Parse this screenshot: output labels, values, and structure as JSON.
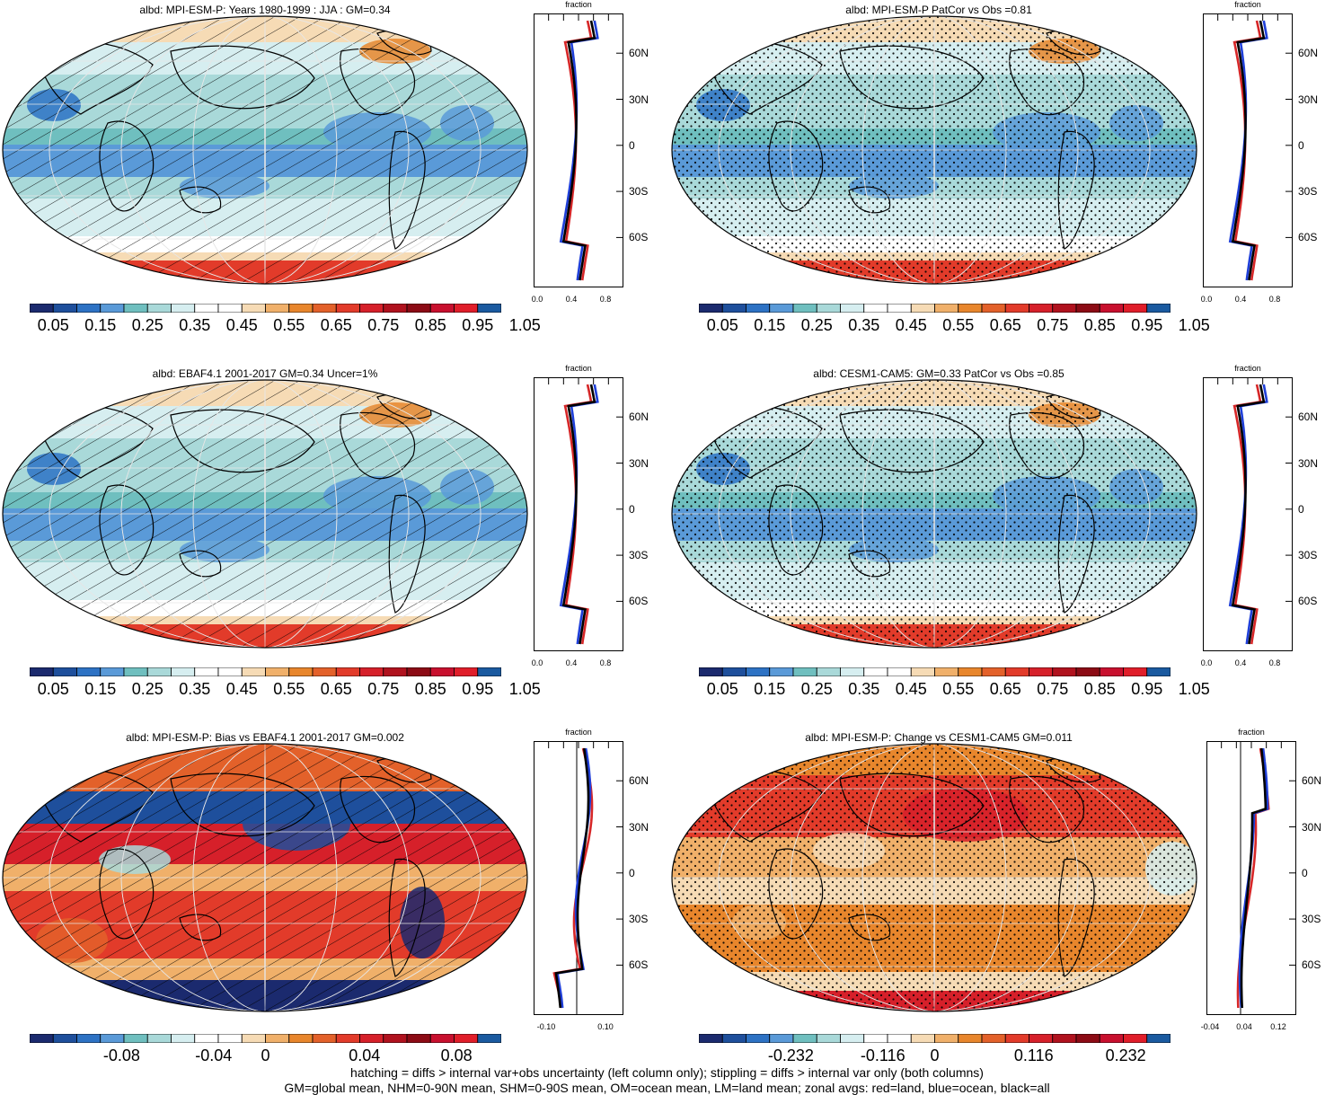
{
  "panels": [
    {
      "id": "p1",
      "title": "albd: MPI-ESM-P: Years 1980-1999 : JJA : GM=0.34",
      "pattern": "hatch",
      "style": "abs",
      "colorbar_labels": [
        "0.05",
        "0.15",
        "0.25",
        "0.35",
        "0.45",
        "0.55",
        "0.65",
        "0.75",
        "0.85",
        "0.95",
        "1.05"
      ],
      "zonal": {
        "label": "fraction",
        "y_ticks": [
          "60N",
          "30N",
          "0",
          "30S",
          "60S"
        ],
        "x_ticks": [
          "0.0",
          "0.4",
          "0.8"
        ]
      }
    },
    {
      "id": "p2",
      "title": "albd: MPI-ESM-P PatCor vs Obs =0.81",
      "pattern": "stipple",
      "style": "abs",
      "colorbar_labels": [
        "0.05",
        "0.15",
        "0.25",
        "0.35",
        "0.45",
        "0.55",
        "0.65",
        "0.75",
        "0.85",
        "0.95",
        "1.05"
      ],
      "zonal": {
        "label": "fraction",
        "y_ticks": [
          "60N",
          "30N",
          "0",
          "30S",
          "60S"
        ],
        "x_ticks": [
          "0.0",
          "0.4",
          "0.8"
        ]
      }
    },
    {
      "id": "p3",
      "title": "albd: EBAF4.1 2001-2017 GM=0.34 Uncer=1%",
      "pattern": "hatch",
      "style": "abs",
      "colorbar_labels": [
        "0.05",
        "0.15",
        "0.25",
        "0.35",
        "0.45",
        "0.55",
        "0.65",
        "0.75",
        "0.85",
        "0.95",
        "1.05"
      ],
      "zonal": {
        "label": "fraction",
        "y_ticks": [
          "60N",
          "30N",
          "0",
          "30S",
          "60S"
        ],
        "x_ticks": [
          "0.0",
          "0.4",
          "0.8"
        ]
      }
    },
    {
      "id": "p4",
      "title": "albd: CESM1-CAM5: GM=0.33 PatCor vs Obs =0.85",
      "pattern": "stipple",
      "style": "abs",
      "colorbar_labels": [
        "0.05",
        "0.15",
        "0.25",
        "0.35",
        "0.45",
        "0.55",
        "0.65",
        "0.75",
        "0.85",
        "0.95",
        "1.05"
      ],
      "zonal": {
        "label": "fraction",
        "y_ticks": [
          "60N",
          "30N",
          "0",
          "30S",
          "60S"
        ],
        "x_ticks": [
          "0.0",
          "0.4",
          "0.8"
        ]
      }
    },
    {
      "id": "p5",
      "title": "albd: MPI-ESM-P: Bias vs EBAF4.1 2001-2017 GM=0.002",
      "pattern": "hatch",
      "style": "bias",
      "colorbar_labels": [
        "-0.08",
        "-0.04",
        "0",
        "0.04",
        "0.08"
      ],
      "zonal": {
        "label": "fraction",
        "y_ticks": [
          "60N",
          "30N",
          "0",
          "30S",
          "60S"
        ],
        "x_ticks": [
          "-0.10",
          "0.10"
        ]
      }
    },
    {
      "id": "p6",
      "title": "albd: MPI-ESM-P: Change vs CESM1-CAM5 GM=0.011",
      "pattern": "stipple",
      "style": "change",
      "colorbar_labels": [
        "-0.232",
        "-0.116",
        "0",
        "0.116",
        "0.232"
      ],
      "zonal": {
        "label": "fraction",
        "y_ticks": [
          "60N",
          "30N",
          "0",
          "30S",
          "60S"
        ],
        "x_ticks": [
          "-0.04",
          "0.04",
          "0.12"
        ]
      }
    }
  ],
  "footer": {
    "line1": "hatching = diffs > internal var+obs uncertainty (left column only); stippling = diffs > internal var only (both columns)",
    "line2": "GM=global mean, NHM=0-90N mean, SHM=0-90S mean, OM=ocean mean, LM=land mean; zonal avgs: red=land, blue=ocean, black=all"
  },
  "colors": {
    "abs_palette": [
      "#1b2a6e",
      "#1e4f9c",
      "#2d72c4",
      "#5a9ad8",
      "#6fbfbf",
      "#a9d9d9",
      "#d6eef0",
      "#ffffff",
      "#ffffff",
      "#f6dbb5",
      "#f0b06a",
      "#e8862c",
      "#e3612a",
      "#e23b2a",
      "#d6202a",
      "#b0121e",
      "#8c0b15",
      "#c8102e",
      "#e01e2a",
      "#1a5aa0"
    ],
    "land": "#d62728",
    "ocean": "#1f3fd8",
    "all": "#000000"
  }
}
